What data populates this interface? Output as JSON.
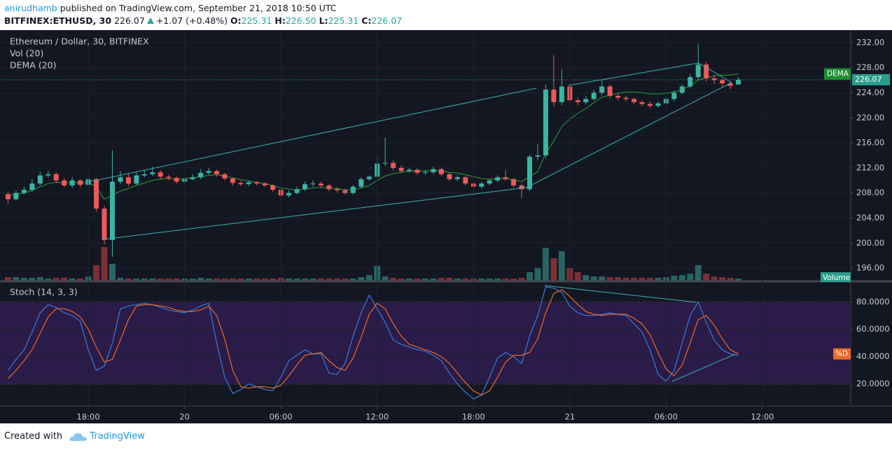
{
  "header": {
    "author": "anirudhamb",
    "published": "published on TradingView.com, September 21, 2018 10:50 UTC",
    "symbol": "BITFINEX:ETHUSD, 30",
    "last": "226.07",
    "change": "+1.07 (+0.48%)",
    "o_label": "O:",
    "open": "225.31",
    "h_label": "H:",
    "high": "226.50",
    "l_label": "L:",
    "low": "225.31",
    "c_label": "C:",
    "close": "226.07"
  },
  "footer": {
    "created": "Created with",
    "brand": "TradingView"
  },
  "chart_data": [
    {
      "type": "candlestick",
      "title": "Ethereum / Dollar, 30, BITFINEX",
      "up_color": "#3db3a3",
      "down_color": "#ea5a5d",
      "open": [
        207.8,
        207.0,
        208.0,
        208.5,
        209.5,
        210.8,
        211.0,
        210.0,
        209.2,
        210.0,
        209.3,
        210.2,
        205.5,
        200.5,
        209.8,
        210.5,
        209.5,
        210.8,
        211.0,
        211.3,
        210.6,
        210.4,
        209.8,
        210.2,
        210.5,
        211.2,
        211.5,
        211.0,
        210.3,
        209.6,
        209.4,
        209.7,
        209.5,
        209.2,
        208.5,
        207.6,
        208.0,
        208.6,
        209.4,
        209.5,
        209.2,
        208.6,
        208.4,
        208.0,
        209.0,
        210.2,
        210.6,
        212.7,
        212.8,
        212.0,
        211.5,
        211.7,
        211.2,
        211.3,
        211.8,
        211.0,
        210.2,
        210.5,
        209.5,
        209.0,
        209.5,
        210.0,
        210.5,
        210.2,
        209.2,
        208.6,
        213.8,
        214.0,
        224.5,
        222.5,
        225.0,
        222.8,
        222.5,
        223.0,
        224.0,
        225.0,
        223.5,
        223.2,
        223.0,
        222.5,
        222.2,
        221.9,
        222.3,
        223.0,
        224.0,
        225.0,
        226.5,
        228.5,
        226.3,
        226.0,
        225.5,
        225.31
      ],
      "high": [
        208.2,
        208.4,
        209.0,
        210.2,
        211.4,
        211.5,
        211.3,
        210.4,
        210.5,
        210.2,
        210.6,
        210.4,
        206.0,
        214.8,
        211.5,
        211.2,
        211.4,
        211.6,
        212.2,
        211.6,
        210.9,
        210.6,
        210.6,
        211.0,
        211.8,
        212.0,
        211.7,
        211.2,
        210.5,
        209.9,
        210.0,
        209.9,
        209.7,
        209.4,
        208.7,
        208.4,
        209.0,
        209.8,
        210.0,
        209.8,
        209.4,
        208.9,
        208.7,
        209.3,
        210.5,
        210.8,
        213.8,
        216.8,
        213.2,
        212.4,
        212.0,
        211.9,
        211.7,
        212.2,
        212.0,
        211.3,
        210.8,
        210.7,
        209.8,
        209.8,
        210.3,
        210.8,
        211.7,
        210.4,
        209.5,
        214.1,
        215.8,
        225.3,
        230.0,
        227.8,
        225.3,
        223.2,
        223.5,
        224.5,
        226.0,
        225.3,
        223.8,
        223.5,
        223.2,
        222.8,
        222.6,
        222.6,
        223.4,
        224.4,
        225.4,
        227.0,
        231.8,
        229.0,
        226.8,
        226.2,
        225.8,
        226.5
      ],
      "low": [
        206.3,
        206.8,
        207.7,
        208.2,
        209.2,
        210.5,
        209.6,
        208.9,
        208.8,
        208.9,
        209.0,
        205.0,
        199.8,
        197.8,
        209.4,
        209.1,
        209.2,
        210.5,
        210.7,
        210.2,
        210.0,
        209.5,
        209.5,
        210.0,
        210.2,
        210.9,
        210.6,
        210.0,
        209.2,
        209.1,
        209.1,
        209.2,
        209.0,
        208.2,
        207.3,
        207.3,
        207.8,
        208.3,
        209.0,
        208.9,
        208.3,
        208.1,
        207.7,
        207.7,
        208.7,
        209.9,
        210.3,
        212.3,
        211.6,
        211.2,
        211.2,
        210.9,
        210.9,
        211.0,
        210.7,
        209.9,
        209.9,
        209.2,
        208.7,
        208.7,
        209.2,
        209.7,
        209.9,
        208.9,
        207.2,
        208.3,
        213.2,
        213.6,
        221.8,
        222.0,
        222.2,
        222.0,
        222.1,
        222.7,
        223.6,
        223.1,
        222.8,
        222.6,
        222.1,
        221.9,
        221.6,
        221.6,
        221.9,
        222.6,
        223.7,
        224.7,
        226.1,
        225.8,
        225.4,
        225.0,
        224.6,
        225.31
      ],
      "close": [
        207.0,
        208.0,
        208.5,
        209.5,
        210.8,
        211.0,
        210.0,
        209.2,
        210.0,
        209.3,
        210.2,
        205.5,
        200.5,
        209.8,
        210.5,
        209.5,
        210.8,
        211.0,
        211.3,
        210.6,
        210.4,
        209.8,
        210.2,
        210.5,
        211.2,
        211.5,
        211.0,
        210.3,
        209.6,
        209.4,
        209.7,
        209.5,
        209.2,
        208.5,
        207.6,
        208.0,
        208.6,
        209.4,
        209.5,
        209.2,
        208.6,
        208.4,
        208.0,
        209.0,
        210.2,
        210.6,
        212.7,
        212.8,
        212.0,
        211.5,
        211.7,
        211.2,
        211.3,
        211.8,
        211.0,
        210.2,
        210.5,
        209.5,
        209.0,
        209.5,
        210.0,
        210.5,
        210.2,
        209.2,
        208.6,
        213.8,
        214.0,
        224.5,
        222.5,
        225.0,
        222.8,
        222.5,
        223.0,
        224.0,
        225.0,
        223.5,
        223.2,
        223.0,
        222.5,
        222.2,
        221.9,
        222.3,
        223.0,
        224.0,
        225.0,
        226.5,
        228.5,
        226.3,
        226.0,
        225.5,
        225.1,
        226.07
      ],
      "volume_label": "Vol (20)",
      "volume_tag": "Volume",
      "volume_up_color": "#2a6462",
      "volume_down_color": "#7c2f37",
      "volume": [
        5,
        5,
        4,
        4,
        5,
        3,
        4,
        4,
        3,
        3,
        6,
        22,
        48,
        24,
        4,
        3,
        3,
        3,
        3,
        3,
        3,
        3,
        3,
        3,
        4,
        3,
        3,
        3,
        3,
        3,
        3,
        3,
        3,
        3,
        4,
        3,
        3,
        3,
        3,
        3,
        3,
        3,
        3,
        3,
        5,
        8,
        21,
        6,
        4,
        3,
        3,
        3,
        3,
        3,
        4,
        4,
        3,
        3,
        3,
        3,
        3,
        3,
        3,
        3,
        4,
        12,
        18,
        47,
        32,
        42,
        18,
        12,
        8,
        6,
        6,
        5,
        5,
        4,
        4,
        4,
        4,
        4,
        5,
        7,
        8,
        10,
        22,
        10,
        6,
        5,
        4,
        3
      ],
      "dema": {
        "name": "DEMA (20)",
        "tag": "DEMA",
        "color": "#2e9e3a",
        "values": [
          207.6,
          207.8,
          208.0,
          208.4,
          209.0,
          209.5,
          209.7,
          209.6,
          209.7,
          209.6,
          209.7,
          209.0,
          207.0,
          207.6,
          208.3,
          208.7,
          209.2,
          209.6,
          210.0,
          210.2,
          210.3,
          210.2,
          210.3,
          210.4,
          210.6,
          210.8,
          210.9,
          210.7,
          210.4,
          210.1,
          209.9,
          209.7,
          209.5,
          209.2,
          208.8,
          208.6,
          208.5,
          208.6,
          208.8,
          208.9,
          208.8,
          208.7,
          208.5,
          208.5,
          208.8,
          209.2,
          210.0,
          210.7,
          211.1,
          211.3,
          211.5,
          211.5,
          211.5,
          211.6,
          211.5,
          211.3,
          211.2,
          210.9,
          210.6,
          210.3,
          210.2,
          210.3,
          210.3,
          210.1,
          209.8,
          210.6,
          211.4,
          214.3,
          216.3,
          218.6,
          219.8,
          220.7,
          221.5,
          222.4,
          223.3,
          223.6,
          223.9,
          224.1,
          224.1,
          224.0,
          223.8,
          223.8,
          223.9,
          224.1,
          224.5,
          225.1,
          226.0,
          226.4,
          226.7,
          226.8,
          226.8,
          227.0
        ]
      },
      "last_price_label": "226.07",
      "xlim": [
        -1,
        105
      ],
      "ylim": [
        194,
        234
      ],
      "yticks": [
        {
          "value": 196,
          "label": "196.00"
        },
        {
          "value": 200,
          "label": "200.00"
        },
        {
          "value": 204,
          "label": "204.00"
        },
        {
          "value": 208,
          "label": "208.00"
        },
        {
          "value": 212,
          "label": "212.00"
        },
        {
          "value": 216,
          "label": "216.00"
        },
        {
          "value": 220,
          "label": "220.00"
        },
        {
          "value": 224,
          "label": "224.00"
        },
        {
          "value": 228,
          "label": "228.00"
        },
        {
          "value": 232,
          "label": "232.00"
        }
      ]
    },
    {
      "type": "line",
      "title": "Stoch (14, 3, 3)",
      "band": [
        20,
        80
      ],
      "band_color": "#2a1b48",
      "series": [
        {
          "color": "#3a7bd5",
          "values": [
            30,
            38,
            45,
            58,
            72,
            78,
            76,
            72,
            70,
            66,
            45,
            30,
            33,
            50,
            75,
            77,
            78,
            79,
            78,
            76,
            74,
            73,
            72,
            74,
            77,
            79,
            50,
            25,
            13,
            16,
            20,
            18,
            16,
            15,
            25,
            37,
            41,
            45,
            42,
            42,
            28,
            27,
            35,
            55,
            72,
            85,
            75,
            65,
            52,
            49,
            47,
            45,
            44,
            41,
            37,
            28,
            20,
            14,
            9,
            12,
            25,
            39,
            43,
            40,
            35,
            55,
            70,
            91,
            90,
            87,
            77,
            72,
            70,
            70,
            71,
            72,
            71,
            70,
            64,
            58,
            45,
            27,
            22,
            30,
            50,
            70,
            80,
            65,
            52,
            45,
            42,
            41
          ]
        },
        {
          "name": "%D",
          "color": "#ec6a2a",
          "values": [
            24,
            30,
            37,
            45,
            57,
            69,
            75,
            75,
            73,
            69,
            60,
            47,
            36,
            38,
            52,
            67,
            77,
            78,
            78,
            77,
            76,
            74,
            73,
            73,
            74,
            77,
            70,
            53,
            30,
            18,
            17,
            18,
            18,
            17,
            19,
            26,
            34,
            41,
            42,
            43,
            37,
            32,
            30,
            39,
            54,
            71,
            79,
            75,
            64,
            55,
            49,
            47,
            45,
            43,
            40,
            35,
            28,
            21,
            15,
            12,
            15,
            25,
            36,
            41,
            41,
            43,
            53,
            72,
            86,
            89,
            84,
            78,
            73,
            71,
            70,
            71,
            71,
            71,
            68,
            64,
            56,
            43,
            31,
            26,
            34,
            50,
            67,
            70,
            63,
            53,
            45,
            42
          ]
        }
      ],
      "xlim": [
        -1,
        105
      ],
      "ylim": [
        4,
        94
      ],
      "yticks": [
        {
          "value": 20,
          "label": "20.0000"
        },
        {
          "value": 40,
          "label": "40.0000"
        },
        {
          "value": 60,
          "label": "60.0000"
        },
        {
          "value": 80,
          "label": "80.0000"
        }
      ],
      "xticks": [
        {
          "value": 10,
          "label": "18:00"
        },
        {
          "value": 22,
          "label": "20"
        },
        {
          "value": 34,
          "label": "06:00"
        },
        {
          "value": 46,
          "label": "12:00"
        },
        {
          "value": 58,
          "label": "18:00"
        },
        {
          "value": 70,
          "label": "21"
        },
        {
          "value": 82,
          "label": "06:00"
        },
        {
          "value": 94,
          "label": "12:00"
        }
      ]
    }
  ]
}
